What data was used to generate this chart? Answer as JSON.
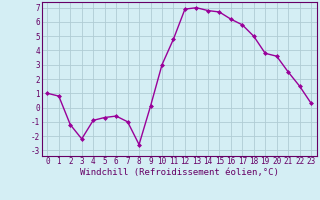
{
  "x": [
    0,
    1,
    2,
    3,
    4,
    5,
    6,
    7,
    8,
    9,
    10,
    11,
    12,
    13,
    14,
    15,
    16,
    17,
    18,
    19,
    20,
    21,
    22,
    23
  ],
  "y": [
    1.0,
    0.8,
    -1.2,
    -2.2,
    -0.9,
    -0.7,
    -0.6,
    -1.0,
    -2.6,
    0.1,
    3.0,
    4.8,
    6.9,
    7.0,
    6.8,
    6.7,
    6.2,
    5.8,
    5.0,
    3.8,
    3.6,
    2.5,
    1.5,
    0.3
  ],
  "line_color": "#990099",
  "marker": "D",
  "marker_size": 2,
  "linewidth": 1.0,
  "xlabel": "Windchill (Refroidissement éolien,°C)",
  "xlim_min": -0.5,
  "xlim_max": 23.5,
  "ylim_min": -3.4,
  "ylim_max": 7.4,
  "yticks": [
    -3,
    -2,
    -1,
    0,
    1,
    2,
    3,
    4,
    5,
    6,
    7
  ],
  "xticks": [
    0,
    1,
    2,
    3,
    4,
    5,
    6,
    7,
    8,
    9,
    10,
    11,
    12,
    13,
    14,
    15,
    16,
    17,
    18,
    19,
    20,
    21,
    22,
    23
  ],
  "bg_color": "#d4eef4",
  "grid_color": "#b0ccd4",
  "tick_label_fontsize": 5.5,
  "xlabel_fontsize": 6.5,
  "label_color": "#660066"
}
